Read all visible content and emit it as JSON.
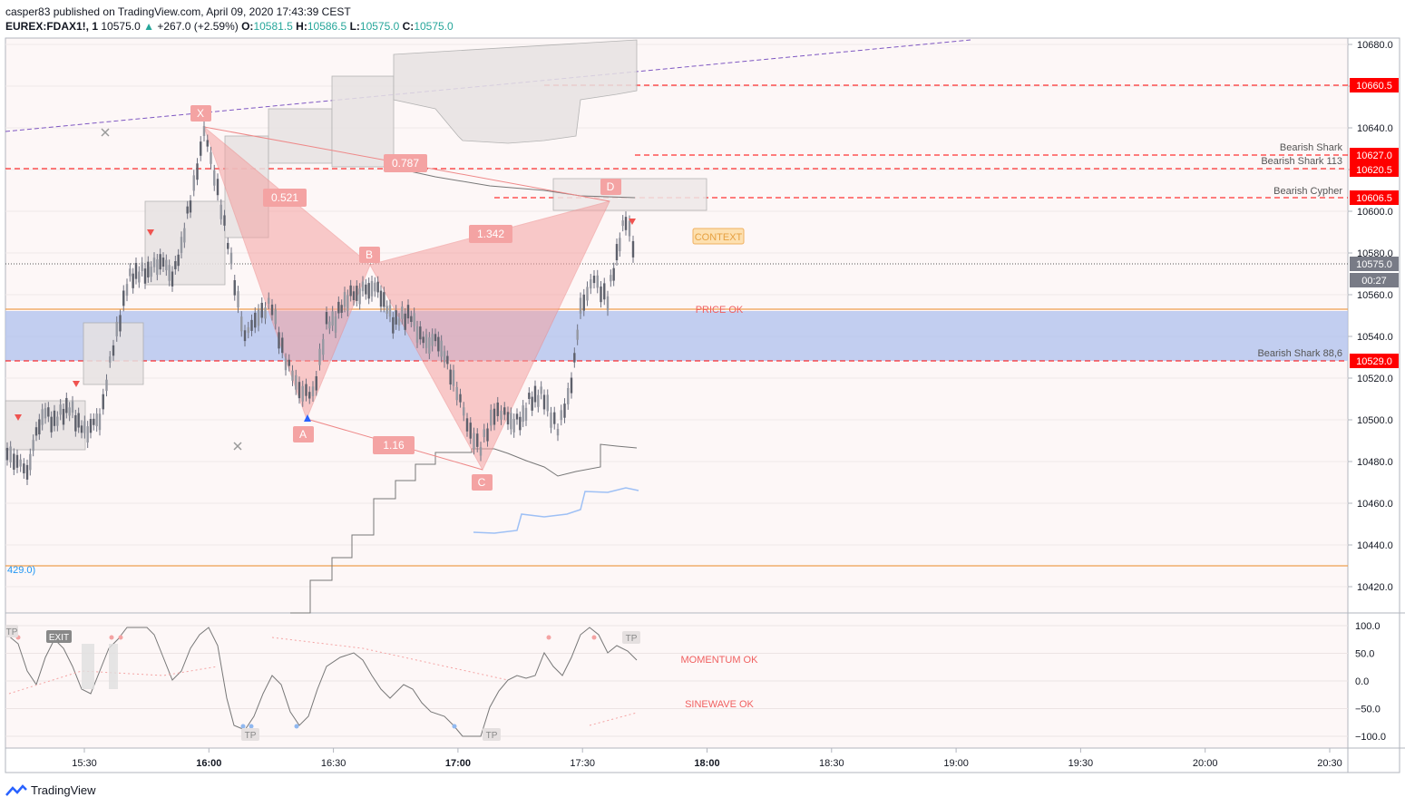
{
  "header": {
    "publisher": "casper83 published on TradingView.com, April 09, 2020 17:43:39 CEST",
    "symbol": "EUREX:FDAX1!, 1",
    "last": "10575.0",
    "change": "+267.0 (+2.59%)",
    "o_label": "O:",
    "o_value": "10581.5",
    "h_label": "H:",
    "h_value": "10586.5",
    "l_label": "L:",
    "l_value": "10575.0",
    "c_label": "C:",
    "c_value": "10575.0"
  },
  "footer": {
    "brand": "TradingView"
  },
  "colors": {
    "bg": "#fdf7f7",
    "red": "#ff0000",
    "pattern": "#f4a3a3",
    "zone": "#aec0ee",
    "grid": "#e0e3eb",
    "orange": "#f0a050"
  },
  "price_axis": {
    "ticks": [
      "10680.0",
      "10660.0",
      "10640.0",
      "10620.0",
      "10600.0",
      "10580.0",
      "10560.0",
      "10540.0",
      "10520.0",
      "10500.0",
      "10480.0",
      "10460.0",
      "10440.0",
      "10420.0"
    ]
  },
  "price_tags": [
    {
      "label": "10660.5",
      "color": "#ff0000"
    },
    {
      "label": "10627.0",
      "color": "#ff0000"
    },
    {
      "label": "10620.5",
      "color": "#ff0000"
    },
    {
      "label": "10606.5",
      "color": "#ff0000"
    },
    {
      "label": "10575.0",
      "color": "#787b86"
    },
    {
      "label": "00:27",
      "color": "#787b86"
    },
    {
      "label": "10529.0",
      "color": "#ff0000"
    }
  ],
  "time_axis": {
    "ticks": [
      "15:30",
      "16:00",
      "16:30",
      "17:00",
      "17:30",
      "18:00",
      "18:30",
      "19:00",
      "19:30",
      "20:00",
      "20:30"
    ]
  },
  "osc_axis": {
    "ticks": [
      "100.0",
      "50.0",
      "0.0",
      "−50.0",
      "−100.0"
    ]
  },
  "pattern": {
    "points": [
      "X",
      "A",
      "B",
      "C",
      "D"
    ],
    "ratios": [
      "0.521",
      "1.342",
      "0.787",
      "1.16"
    ]
  },
  "level_labels": [
    "Bearish Shark",
    "Bearish Shark 113",
    "Bearish Cypher",
    "Bearish Shark 88,6"
  ],
  "annotations": {
    "context": "CONTEXT",
    "price_ok": "PRICE OK",
    "momentum_ok": "MOMENTUM OK",
    "sinewave_ok": "SINEWAVE OK",
    "left_cut": "429.0)"
  },
  "osc_tags": [
    "TP",
    "EXIT",
    "TP",
    "TP",
    "TP"
  ]
}
